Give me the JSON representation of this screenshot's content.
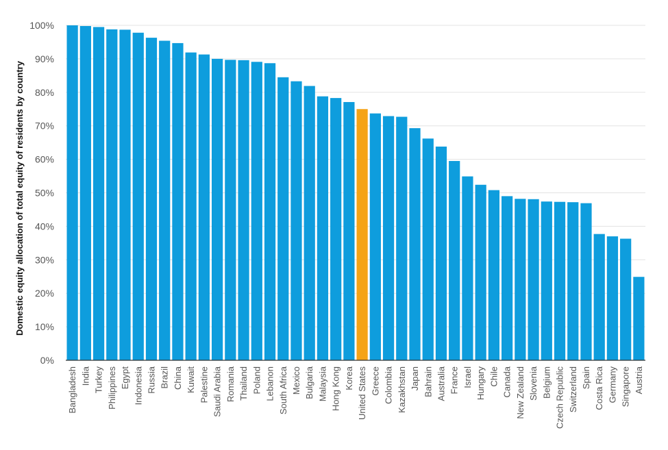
{
  "chart_data": {
    "type": "bar",
    "title": "",
    "xlabel": "",
    "ylabel": "Domestic equity allocation of total equity of residents by country",
    "ylim": [
      0,
      100
    ],
    "yticks": [
      "0%",
      "10%",
      "20%",
      "30%",
      "40%",
      "50%",
      "60%",
      "70%",
      "80%",
      "90%",
      "100%"
    ],
    "grid": "horizontal",
    "colors": {
      "default": "#0E9DDD",
      "highlight": "#F5A316"
    },
    "highlight_category": "United States",
    "categories": [
      "Bangladesh",
      "India",
      "Turkey",
      "Philippines",
      "Egypt",
      "Indonesia",
      "Russia",
      "Brazil",
      "China",
      "Kuwait",
      "Palestine",
      "Saudi Arabia",
      "Romania",
      "Thailand",
      "Poland",
      "Lebanon",
      "South Africa",
      "Mexico",
      "Bulgaria",
      "Malaysia",
      "Hong Kong",
      "Korea",
      "United States",
      "Greece",
      "Colombia",
      "Kazakhstan",
      "Japan",
      "Bahrain",
      "Australia",
      "France",
      "Israel",
      "Hungary",
      "Chile",
      "Canada",
      "New Zealand",
      "Slovenia",
      "Belgium",
      "Czech Republic",
      "Switzerland",
      "Spain",
      "Costa Rica",
      "Germany",
      "Singapore",
      "Austria"
    ],
    "values": [
      100,
      99.8,
      99.5,
      98.8,
      98.7,
      97.8,
      96.3,
      95.4,
      94.7,
      91.9,
      91.3,
      90,
      89.7,
      89.6,
      89.1,
      88.7,
      84.5,
      83.3,
      81.9,
      78.8,
      78.3,
      77.1,
      75,
      73.7,
      72.9,
      72.7,
      69.3,
      66.2,
      63.8,
      59.5,
      54.9,
      52.4,
      50.8,
      49,
      48.2,
      48.1,
      47.4,
      47.3,
      47.2,
      46.9,
      37.7,
      37,
      36.3,
      24.9
    ]
  }
}
